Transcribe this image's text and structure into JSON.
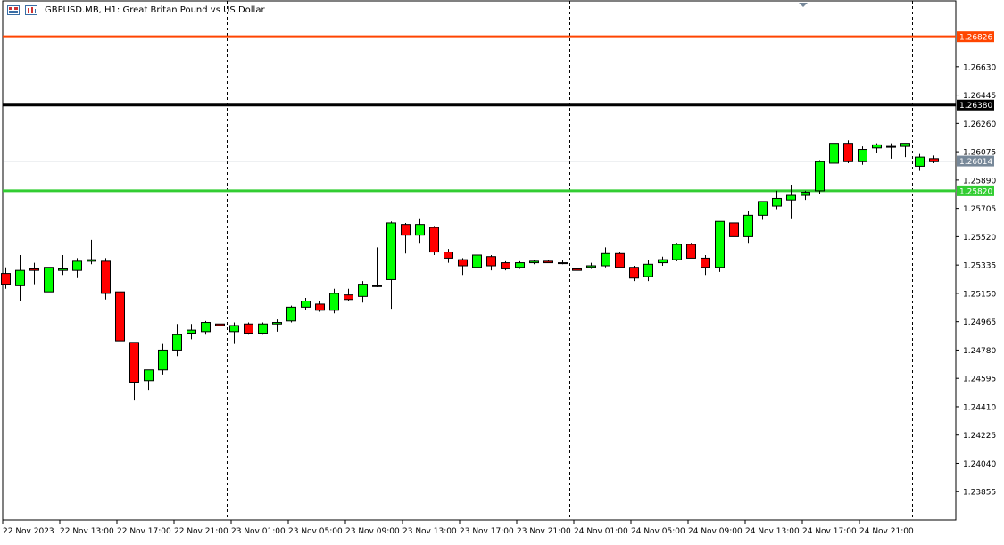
{
  "header": {
    "title": "GBPUSD.MB, H1:  Great Britan Pound vs US Dollar",
    "icon_names": [
      "chart-type-icon",
      "timeframe-icon"
    ]
  },
  "colors": {
    "bull": "#00ff00",
    "bear": "#ff0000",
    "wick": "#000000",
    "resistance": "#ff4500",
    "pivot": "#000000",
    "support": "#32cd32",
    "bid": "#778899",
    "axis": "#000000"
  },
  "chart_data": {
    "type": "candlestick",
    "symbol": "GBPUSD.MB",
    "timeframe": "H1",
    "ylim": [
      1.2367,
      1.2706
    ],
    "y_ticks": [
      "1.26630",
      "1.26445",
      "1.26260",
      "1.26075",
      "1.25890",
      "1.25705",
      "1.25520",
      "1.25335",
      "1.25150",
      "1.24965",
      "1.24780",
      "1.24595",
      "1.24410",
      "1.24225",
      "1.24040",
      "1.23855"
    ],
    "x_labels": [
      "22 Nov 2023",
      "22 Nov 13:00",
      "22 Nov 17:00",
      "22 Nov 21:00",
      "23 Nov 01:00",
      "23 Nov 05:00",
      "23 Nov 09:00",
      "23 Nov 13:00",
      "23 Nov 17:00",
      "23 Nov 21:00",
      "24 Nov 01:00",
      "24 Nov 05:00",
      "24 Nov 09:00",
      "24 Nov 13:00",
      "24 Nov 17:00",
      "24 Nov 21:00"
    ],
    "session_separators": [
      15,
      39,
      63
    ],
    "price_levels": [
      {
        "name": "resistance",
        "value": 1.26826,
        "label": "1.26826"
      },
      {
        "name": "pivot",
        "value": 1.2638,
        "label": "1.26380"
      },
      {
        "name": "bid",
        "value": 1.26014,
        "label": "1.26014"
      },
      {
        "name": "support",
        "value": 1.2582,
        "label": "1.25820"
      }
    ],
    "candles": [
      {
        "o": 1.2528,
        "h": 1.2532,
        "l": 1.2518,
        "c": 1.2521
      },
      {
        "o": 1.252,
        "h": 1.254,
        "l": 1.251,
        "c": 1.253
      },
      {
        "o": 1.2531,
        "h": 1.2535,
        "l": 1.2521,
        "c": 1.253
      },
      {
        "o": 1.2516,
        "h": 1.2532,
        "l": 1.2516,
        "c": 1.2532
      },
      {
        "o": 1.253,
        "h": 1.254,
        "l": 1.2527,
        "c": 1.2531
      },
      {
        "o": 1.253,
        "h": 1.2538,
        "l": 1.2525,
        "c": 1.2536
      },
      {
        "o": 1.2536,
        "h": 1.255,
        "l": 1.2534,
        "c": 1.2537
      },
      {
        "o": 1.2536,
        "h": 1.2538,
        "l": 1.2511,
        "c": 1.2515
      },
      {
        "o": 1.2516,
        "h": 1.2518,
        "l": 1.248,
        "c": 1.2484
      },
      {
        "o": 1.2483,
        "h": 1.2483,
        "l": 1.2445,
        "c": 1.2457
      },
      {
        "o": 1.2458,
        "h": 1.2465,
        "l": 1.2452,
        "c": 1.2465
      },
      {
        "o": 1.2465,
        "h": 1.2482,
        "l": 1.2462,
        "c": 1.2478
      },
      {
        "o": 1.2478,
        "h": 1.2495,
        "l": 1.2474,
        "c": 1.2488
      },
      {
        "o": 1.2489,
        "h": 1.2495,
        "l": 1.2485,
        "c": 1.2491
      },
      {
        "o": 1.249,
        "h": 1.2497,
        "l": 1.2488,
        "c": 1.2496
      },
      {
        "o": 1.2495,
        "h": 1.2497,
        "l": 1.2492,
        "c": 1.2494
      },
      {
        "o": 1.249,
        "h": 1.2496,
        "l": 1.2482,
        "c": 1.2494
      },
      {
        "o": 1.2495,
        "h": 1.2496,
        "l": 1.2488,
        "c": 1.2489
      },
      {
        "o": 1.2489,
        "h": 1.2496,
        "l": 1.2488,
        "c": 1.2495
      },
      {
        "o": 1.2495,
        "h": 1.2498,
        "l": 1.249,
        "c": 1.2496
      },
      {
        "o": 1.2497,
        "h": 1.2507,
        "l": 1.2496,
        "c": 1.2506
      },
      {
        "o": 1.2506,
        "h": 1.2512,
        "l": 1.2504,
        "c": 1.251
      },
      {
        "o": 1.2508,
        "h": 1.251,
        "l": 1.2503,
        "c": 1.2504
      },
      {
        "o": 1.2504,
        "h": 1.2518,
        "l": 1.2502,
        "c": 1.2515
      },
      {
        "o": 1.2514,
        "h": 1.2518,
        "l": 1.251,
        "c": 1.2511
      },
      {
        "o": 1.2513,
        "h": 1.2523,
        "l": 1.2509,
        "c": 1.2521
      },
      {
        "o": 1.252,
        "h": 1.2545,
        "l": 1.2519,
        "c": 1.252
      },
      {
        "o": 1.2524,
        "h": 1.2562,
        "l": 1.2505,
        "c": 1.2561
      },
      {
        "o": 1.256,
        "h": 1.2561,
        "l": 1.2541,
        "c": 1.2553
      },
      {
        "o": 1.2553,
        "h": 1.2564,
        "l": 1.2548,
        "c": 1.256
      },
      {
        "o": 1.2558,
        "h": 1.2559,
        "l": 1.254,
        "c": 1.2542
      },
      {
        "o": 1.2542,
        "h": 1.2544,
        "l": 1.2535,
        "c": 1.2538
      },
      {
        "o": 1.2537,
        "h": 1.2538,
        "l": 1.2527,
        "c": 1.2533
      },
      {
        "o": 1.2532,
        "h": 1.2543,
        "l": 1.2529,
        "c": 1.254
      },
      {
        "o": 1.2539,
        "h": 1.254,
        "l": 1.253,
        "c": 1.2533
      },
      {
        "o": 1.2535,
        "h": 1.2536,
        "l": 1.253,
        "c": 1.2531
      },
      {
        "o": 1.2532,
        "h": 1.2536,
        "l": 1.2531,
        "c": 1.2535
      },
      {
        "o": 1.2535,
        "h": 1.2537,
        "l": 1.2534,
        "c": 1.2536
      },
      {
        "o": 1.2536,
        "h": 1.2537,
        "l": 1.2535,
        "c": 1.2535
      },
      {
        "o": 1.2535,
        "h": 1.2537,
        "l": 1.2534,
        "c": 1.2535
      },
      {
        "o": 1.2531,
        "h": 1.2533,
        "l": 1.2526,
        "c": 1.253
      },
      {
        "o": 1.2532,
        "h": 1.2535,
        "l": 1.2531,
        "c": 1.2533
      },
      {
        "o": 1.2533,
        "h": 1.2545,
        "l": 1.2532,
        "c": 1.2541
      },
      {
        "o": 1.2541,
        "h": 1.2542,
        "l": 1.2532,
        "c": 1.2532
      },
      {
        "o": 1.2532,
        "h": 1.2533,
        "l": 1.2523,
        "c": 1.2525
      },
      {
        "o": 1.2526,
        "h": 1.2537,
        "l": 1.2523,
        "c": 1.2534
      },
      {
        "o": 1.2535,
        "h": 1.2539,
        "l": 1.2533,
        "c": 1.2537
      },
      {
        "o": 1.2537,
        "h": 1.2548,
        "l": 1.2536,
        "c": 1.2547
      },
      {
        "o": 1.2547,
        "h": 1.2548,
        "l": 1.2538,
        "c": 1.2538
      },
      {
        "o": 1.2538,
        "h": 1.254,
        "l": 1.2527,
        "c": 1.2532
      },
      {
        "o": 1.2532,
        "h": 1.2562,
        "l": 1.2529,
        "c": 1.2562
      },
      {
        "o": 1.2561,
        "h": 1.2563,
        "l": 1.2547,
        "c": 1.2552
      },
      {
        "o": 1.2552,
        "h": 1.2569,
        "l": 1.2548,
        "c": 1.2566
      },
      {
        "o": 1.2566,
        "h": 1.2575,
        "l": 1.2563,
        "c": 1.2575
      },
      {
        "o": 1.2572,
        "h": 1.2582,
        "l": 1.257,
        "c": 1.2577
      },
      {
        "o": 1.2576,
        "h": 1.2586,
        "l": 1.2564,
        "c": 1.2579
      },
      {
        "o": 1.2579,
        "h": 1.2582,
        "l": 1.2576,
        "c": 1.2581
      },
      {
        "o": 1.2582,
        "h": 1.2602,
        "l": 1.258,
        "c": 1.2601
      },
      {
        "o": 1.26,
        "h": 1.2616,
        "l": 1.2599,
        "c": 1.2613
      },
      {
        "o": 1.2613,
        "h": 1.2615,
        "l": 1.26,
        "c": 1.2601
      },
      {
        "o": 1.2601,
        "h": 1.2611,
        "l": 1.2599,
        "c": 1.2609
      },
      {
        "o": 1.261,
        "h": 1.2613,
        "l": 1.2607,
        "c": 1.2612
      },
      {
        "o": 1.2611,
        "h": 1.2613,
        "l": 1.2603,
        "c": 1.2611
      },
      {
        "o": 1.2611,
        "h": 1.2613,
        "l": 1.2604,
        "c": 1.2613
      },
      {
        "o": 1.2598,
        "h": 1.2606,
        "l": 1.2595,
        "c": 1.2604
      },
      {
        "o": 1.2603,
        "h": 1.2605,
        "l": 1.26,
        "c": 1.2601
      }
    ]
  }
}
